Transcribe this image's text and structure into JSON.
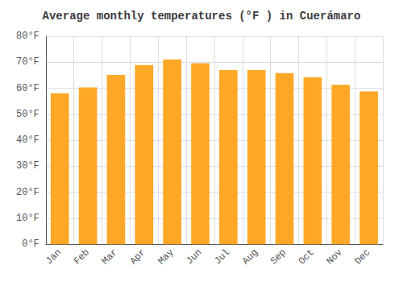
{
  "chart_data": {
    "type": "bar",
    "title": "Average monthly temperatures (°F ) in Cuerámaro",
    "categories": [
      "Jan",
      "Feb",
      "Mar",
      "Apr",
      "May",
      "Jun",
      "Jul",
      "Aug",
      "Sep",
      "Oct",
      "Nov",
      "Dec"
    ],
    "values": [
      58.1,
      60.3,
      65.1,
      68.9,
      71.1,
      69.6,
      67.0,
      67.0,
      65.8,
      64.2,
      61.3,
      58.8
    ],
    "color": "#FFA726",
    "ylim": [
      0,
      80
    ],
    "yticks": [
      {
        "value": 0,
        "label": "0°F"
      },
      {
        "value": 10,
        "label": "10°F"
      },
      {
        "value": 20,
        "label": "20°F"
      },
      {
        "value": 30,
        "label": "30°F"
      },
      {
        "value": 40,
        "label": "40°F"
      },
      {
        "value": 50,
        "label": "50°F"
      },
      {
        "value": 60,
        "label": "60°F"
      },
      {
        "value": 70,
        "label": "70°F"
      },
      {
        "value": 80,
        "label": "80°F"
      }
    ],
    "grid": true
  }
}
